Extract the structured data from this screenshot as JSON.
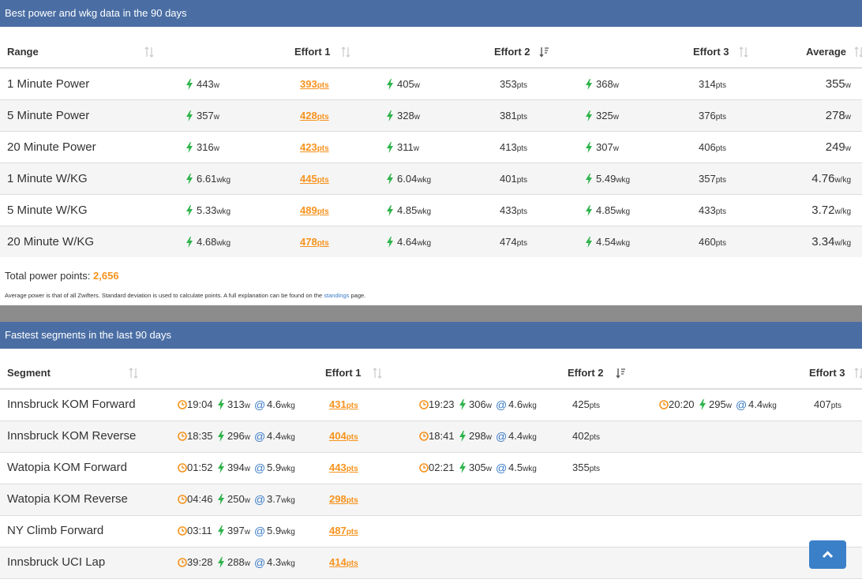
{
  "power": {
    "title": "Best power and wkg data in the 90 days",
    "headers": [
      "Range",
      "Effort 1",
      "Effort 2",
      "Effort 3",
      "Average"
    ],
    "rows": [
      {
        "label": "1 Minute Power",
        "cells": [
          [
            "443",
            "w"
          ],
          [
            "393",
            "pts"
          ],
          [
            "405",
            "w"
          ],
          [
            "353",
            "pts"
          ],
          [
            "368",
            "w"
          ],
          [
            "314",
            "pts"
          ]
        ],
        "average": [
          "355",
          "w"
        ]
      },
      {
        "label": "5 Minute Power",
        "cells": [
          [
            "357",
            "w"
          ],
          [
            "428",
            "pts"
          ],
          [
            "328",
            "w"
          ],
          [
            "381",
            "pts"
          ],
          [
            "325",
            "w"
          ],
          [
            "376",
            "pts"
          ]
        ],
        "average": [
          "278",
          "w"
        ]
      },
      {
        "label": "20 Minute Power",
        "cells": [
          [
            "316",
            "w"
          ],
          [
            "423",
            "pts"
          ],
          [
            "311",
            "w"
          ],
          [
            "413",
            "pts"
          ],
          [
            "307",
            "w"
          ],
          [
            "406",
            "pts"
          ]
        ],
        "average": [
          "249",
          "w"
        ]
      },
      {
        "label": "1 Minute W/KG",
        "cells": [
          [
            "6.61",
            "wkg"
          ],
          [
            "445",
            "pts"
          ],
          [
            "6.04",
            "wkg"
          ],
          [
            "401",
            "pts"
          ],
          [
            "5.49",
            "wkg"
          ],
          [
            "357",
            "pts"
          ]
        ],
        "average": [
          "4.76",
          "w/kg"
        ]
      },
      {
        "label": "5 Minute W/KG",
        "cells": [
          [
            "5.33",
            "wkg"
          ],
          [
            "489",
            "pts"
          ],
          [
            "4.85",
            "wkg"
          ],
          [
            "433",
            "pts"
          ],
          [
            "4.85",
            "wkg"
          ],
          [
            "433",
            "pts"
          ]
        ],
        "average": [
          "3.72",
          "w/kg"
        ]
      },
      {
        "label": "20 Minute W/KG",
        "cells": [
          [
            "4.68",
            "wkg"
          ],
          [
            "478",
            "pts"
          ],
          [
            "4.64",
            "wkg"
          ],
          [
            "474",
            "pts"
          ],
          [
            "4.54",
            "wkg"
          ],
          [
            "460",
            "pts"
          ]
        ],
        "average": [
          "3.34",
          "w/kg"
        ]
      }
    ],
    "total_label": "Total power points:",
    "total": "2,656",
    "note": "Average power is that of all Zwifters. Standard deviation is used to calculate points. A full explanation can be found on the",
    "note_link": "standings",
    "note_end": "page."
  },
  "segments": {
    "title": "Fastest segments in the last 90 days",
    "headers": [
      "Segment",
      "Effort 1",
      "Effort 2",
      "Effort 3"
    ],
    "at_sign": "@",
    "rows": [
      {
        "label": "Innsbruck KOM Forward",
        "efforts": [
          {
            "time": "19:04",
            "watts": [
              "313",
              "w"
            ],
            "wkg": [
              "4.6",
              "wkg"
            ],
            "pts": [
              "431",
              "pts"
            ]
          },
          {
            "time": "19:23",
            "watts": [
              "306",
              "w"
            ],
            "wkg": [
              "4.6",
              "wkg"
            ],
            "pts": [
              "425",
              "pts"
            ]
          },
          {
            "time": "20:20",
            "watts": [
              "295",
              "w"
            ],
            "wkg": [
              "4.4",
              "wkg"
            ],
            "pts": [
              "407",
              "pts"
            ]
          }
        ]
      },
      {
        "label": "Innsbruck KOM Reverse",
        "efforts": [
          {
            "time": "18:35",
            "watts": [
              "296",
              "w"
            ],
            "wkg": [
              "4.4",
              "wkg"
            ],
            "pts": [
              "404",
              "pts"
            ]
          },
          {
            "time": "18:41",
            "watts": [
              "298",
              "w"
            ],
            "wkg": [
              "4.4",
              "wkg"
            ],
            "pts": [
              "402",
              "pts"
            ]
          }
        ]
      },
      {
        "label": "Watopia KOM Forward",
        "efforts": [
          {
            "time": "01:52",
            "watts": [
              "394",
              "w"
            ],
            "wkg": [
              "5.9",
              "wkg"
            ],
            "pts": [
              "443",
              "pts"
            ]
          },
          {
            "time": "02:21",
            "watts": [
              "305",
              "w"
            ],
            "wkg": [
              "4.5",
              "wkg"
            ],
            "pts": [
              "355",
              "pts"
            ]
          }
        ]
      },
      {
        "label": "Watopia KOM Reverse",
        "efforts": [
          {
            "time": "04:46",
            "watts": [
              "250",
              "w"
            ],
            "wkg": [
              "3.7",
              "wkg"
            ],
            "pts": [
              "298",
              "pts"
            ]
          }
        ]
      },
      {
        "label": "NY Climb Forward",
        "efforts": [
          {
            "time": "03:11",
            "watts": [
              "397",
              "w"
            ],
            "wkg": [
              "5.9",
              "wkg"
            ],
            "pts": [
              "487",
              "pts"
            ]
          }
        ]
      },
      {
        "label": "Innsbruck UCI Lap",
        "efforts": [
          {
            "time": "39:28",
            "watts": [
              "288",
              "w"
            ],
            "wkg": [
              "4.3",
              "wkg"
            ],
            "pts": [
              "414",
              "pts"
            ]
          }
        ]
      }
    ]
  }
}
